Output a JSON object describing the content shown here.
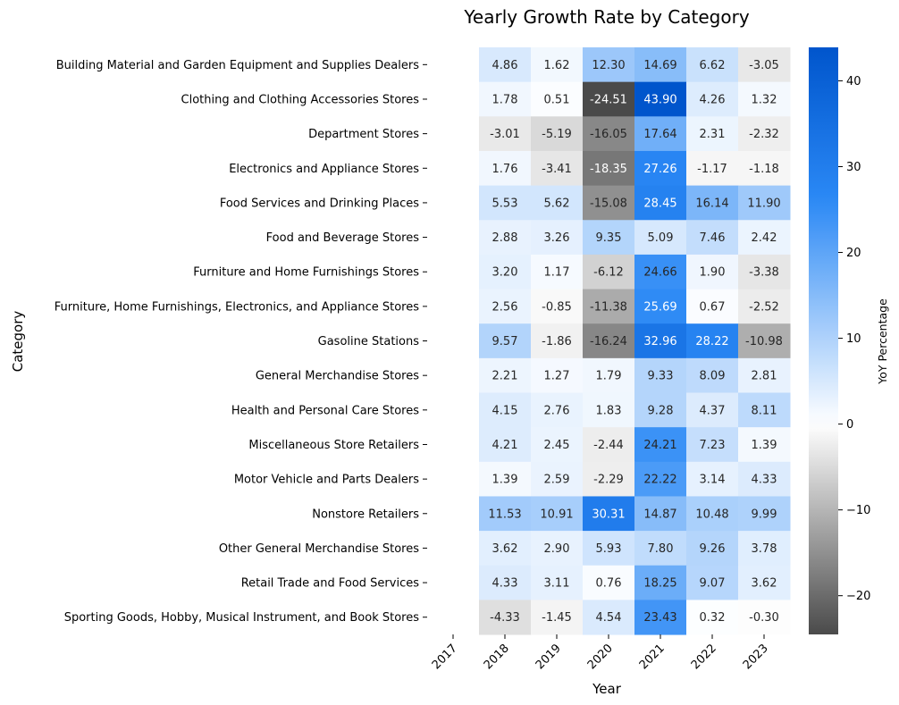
{
  "chart_data": {
    "type": "heatmap",
    "title": "Yearly Growth Rate by Category",
    "xlabel": "Year",
    "ylabel": "Category",
    "x_categories": [
      "2017",
      "2018",
      "2019",
      "2020",
      "2021",
      "2022",
      "2023"
    ],
    "y_categories": [
      "Building Material and Garden Equipment and Supplies Dealers",
      "Clothing and Clothing Accessories Stores",
      "Department Stores",
      "Electronics and Appliance Stores",
      "Food Services and Drinking Places",
      "Food and Beverage Stores",
      "Furniture and Home Furnishings Stores",
      "Furniture, Home Furnishings, Electronics, and Appliance Stores",
      "Gasoline Stations",
      "General Merchandise Stores",
      "Health and Personal Care Stores",
      "Miscellaneous Store Retailers",
      "Motor Vehicle and Parts Dealers",
      "Nonstore Retailers",
      "Other General Merchandise Stores",
      "Retail Trade and Food Services",
      "Sporting Goods, Hobby, Musical Instrument, and Book Stores"
    ],
    "values": [
      [
        null,
        4.86,
        1.62,
        12.3,
        14.69,
        6.62,
        -3.05
      ],
      [
        null,
        1.78,
        0.51,
        -24.51,
        43.9,
        4.26,
        1.32
      ],
      [
        null,
        -3.01,
        -5.19,
        -16.05,
        17.64,
        2.31,
        -2.32
      ],
      [
        null,
        1.76,
        -3.41,
        -18.35,
        27.26,
        -1.17,
        -1.18
      ],
      [
        null,
        5.53,
        5.62,
        -15.08,
        28.45,
        16.14,
        11.9
      ],
      [
        null,
        2.88,
        3.26,
        9.35,
        5.09,
        7.46,
        2.42
      ],
      [
        null,
        3.2,
        1.17,
        -6.12,
        24.66,
        1.9,
        -3.38
      ],
      [
        null,
        2.56,
        -0.85,
        -11.38,
        25.69,
        0.67,
        -2.52
      ],
      [
        null,
        9.57,
        -1.86,
        -16.24,
        32.96,
        28.22,
        -10.98
      ],
      [
        null,
        2.21,
        1.27,
        1.79,
        9.33,
        8.09,
        2.81
      ],
      [
        null,
        4.15,
        2.76,
        1.83,
        9.28,
        4.37,
        8.11
      ],
      [
        null,
        4.21,
        2.45,
        -2.44,
        24.21,
        7.23,
        1.39
      ],
      [
        null,
        1.39,
        2.59,
        -2.29,
        22.22,
        3.14,
        4.33
      ],
      [
        null,
        11.53,
        10.91,
        30.31,
        14.87,
        10.48,
        9.99
      ],
      [
        null,
        3.62,
        2.9,
        5.93,
        7.8,
        9.26,
        3.78
      ],
      [
        null,
        4.33,
        3.11,
        0.76,
        18.25,
        9.07,
        3.62
      ],
      [
        null,
        -4.33,
        -1.45,
        4.54,
        23.43,
        0.32,
        -0.3
      ]
    ],
    "value_format": "2 decimals",
    "colorbar": {
      "label": "YoY Percentage",
      "range": [
        -24.51,
        43.9
      ],
      "ticks": [
        -20,
        -10,
        0,
        10,
        20,
        30,
        40
      ],
      "tick_labels": [
        "−20",
        "−10",
        "0",
        "10",
        "20",
        "30",
        "40"
      ],
      "colors": {
        "min": "#4a4a4a",
        "mid": "#ffffff",
        "max": "#0055cc"
      }
    },
    "legend_placement": "right",
    "grid": false
  }
}
